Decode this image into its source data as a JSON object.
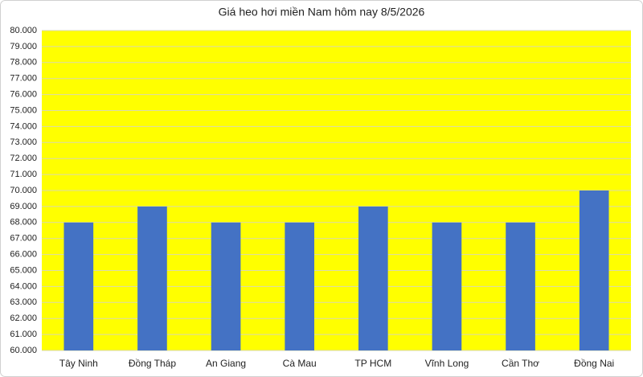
{
  "chart_data": {
    "type": "bar",
    "title": "Giá heo hơi miền Nam hôm nay 8/5/2026",
    "categories": [
      "Tây Ninh",
      "Đồng Tháp",
      "An Giang",
      "Cà Mau",
      "TP HCM",
      "Vĩnh Long",
      "Cần Thơ",
      "Đồng Nai"
    ],
    "values": [
      68000,
      69000,
      68000,
      68000,
      69000,
      68000,
      68000,
      70000
    ],
    "color": "#4472c4",
    "plot_background": "#ffff00",
    "ylim": [
      60000,
      80000
    ],
    "yticks": [
      {
        "value": 60000,
        "label": "60.000"
      },
      {
        "value": 61000,
        "label": "61.000"
      },
      {
        "value": 62000,
        "label": "62.000"
      },
      {
        "value": 63000,
        "label": "63.000"
      },
      {
        "value": 64000,
        "label": "64.000"
      },
      {
        "value": 65000,
        "label": "65.000"
      },
      {
        "value": 66000,
        "label": "66.000"
      },
      {
        "value": 67000,
        "label": "67.000"
      },
      {
        "value": 68000,
        "label": "68.000"
      },
      {
        "value": 69000,
        "label": "69.000"
      },
      {
        "value": 70000,
        "label": "70.000"
      },
      {
        "value": 71000,
        "label": "71.000"
      },
      {
        "value": 72000,
        "label": "72.000"
      },
      {
        "value": 73000,
        "label": "73.000"
      },
      {
        "value": 74000,
        "label": "74.000"
      },
      {
        "value": 75000,
        "label": "75.000"
      },
      {
        "value": 76000,
        "label": "76.000"
      },
      {
        "value": 77000,
        "label": "77.000"
      },
      {
        "value": 78000,
        "label": "78.000"
      },
      {
        "value": 79000,
        "label": "79.000"
      },
      {
        "value": 80000,
        "label": "80.000"
      }
    ],
    "grid": true
  }
}
